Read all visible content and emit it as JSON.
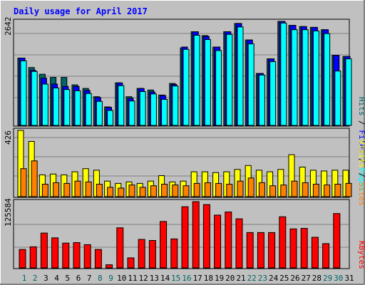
{
  "chart_data": {
    "type": "bar",
    "title": "Daily usage for April 2017",
    "categories": [
      "1",
      "2",
      "3",
      "4",
      "5",
      "6",
      "7",
      "8",
      "9",
      "10",
      "11",
      "12",
      "13",
      "14",
      "15",
      "16",
      "17",
      "18",
      "19",
      "20",
      "21",
      "22",
      "23",
      "24",
      "25",
      "26",
      "27",
      "28",
      "29",
      "30",
      "31"
    ],
    "weekend_days": [
      "1",
      "2",
      "8",
      "9",
      "15",
      "16",
      "22",
      "23",
      "29",
      "30"
    ],
    "panels": {
      "top": {
        "axis_label": "2642",
        "ylim": [
          0,
          2642
        ],
        "side_labels": [
          "Pages",
          "Files",
          "Hits"
        ],
        "series": [
          {
            "name": "Hits",
            "color": "#006666",
            "values": [
              1710,
              1470,
              1300,
              1220,
              1220,
              1030,
              940,
              730,
              470,
              1080,
              730,
              940,
              900,
              770,
              1065,
              1970,
              2380,
              2280,
              1990,
              2380,
              2590,
              2170,
              1320,
              1690,
              2710,
              2540,
              2510,
              2490,
              2430,
              1780,
              1750
            ]
          },
          {
            "name": "Files",
            "color": "#0000ff",
            "values": [
              1710,
              1400,
              1200,
              1050,
              990,
              990,
              890,
              710,
              460,
              1080,
              690,
              940,
              850,
              760,
              1040,
              1990,
              2380,
              2260,
              1990,
              2380,
              2590,
              2170,
              1320,
              1690,
              2710,
              2540,
              2510,
              2490,
              2430,
              1780,
              1750
            ]
          },
          {
            "name": "Pages",
            "color": "#00ffff",
            "values": [
              1640,
              1370,
              1050,
              950,
              910,
              880,
              810,
              610,
              380,
              1010,
              620,
              860,
              800,
              660,
              1000,
              1930,
              2290,
              2180,
              1900,
              2310,
              2500,
              2070,
              1280,
              1620,
              2600,
              2430,
              2430,
              2400,
              2330,
              1380,
              1690
            ]
          }
        ]
      },
      "middle": {
        "axis_label": "426",
        "ylim": [
          0,
          426
        ],
        "side_labels": [
          "Sites",
          "Visits"
        ],
        "series": [
          {
            "name": "Visits",
            "color": "#ffff00",
            "values": [
              426,
              355,
              140,
              145,
              140,
              160,
              180,
              170,
              100,
              85,
              95,
              85,
              100,
              135,
              95,
              100,
              160,
              160,
              155,
              160,
              175,
              200,
              170,
              160,
              175,
              270,
              190,
              170,
              165,
              170,
              170
            ]
          },
          {
            "name": "Sites",
            "color": "#ff8000",
            "values": [
              180,
              230,
              80,
              90,
              85,
              100,
              95,
              80,
              60,
              55,
              75,
              60,
              70,
              80,
              75,
              70,
              85,
              90,
              85,
              80,
              100,
              120,
              90,
              70,
              75,
              100,
              90,
              80,
              75,
              80,
              85
            ]
          }
        ]
      },
      "bottom": {
        "axis_label": "125584",
        "ylim": [
          0,
          125584
        ],
        "side_labels": [
          "KBytes"
        ],
        "series": [
          {
            "name": "KBytes",
            "color": "#ff0000",
            "values": [
              35000,
              40000,
              66000,
              57000,
              47000,
              48000,
              44000,
              35000,
              6000,
              76000,
              19000,
              54000,
              52000,
              88000,
              55000,
              116000,
              128000,
              120000,
              100000,
              106000,
              93000,
              67000,
              67000,
              67000,
              97000,
              74000,
              75000,
              58000,
              46000,
              103000,
              0
            ]
          }
        ]
      }
    }
  },
  "colors": {
    "background": "#c0c0c0",
    "title": "#0000ff",
    "weekday_label": "#000000",
    "weekend_label": "#006666"
  }
}
